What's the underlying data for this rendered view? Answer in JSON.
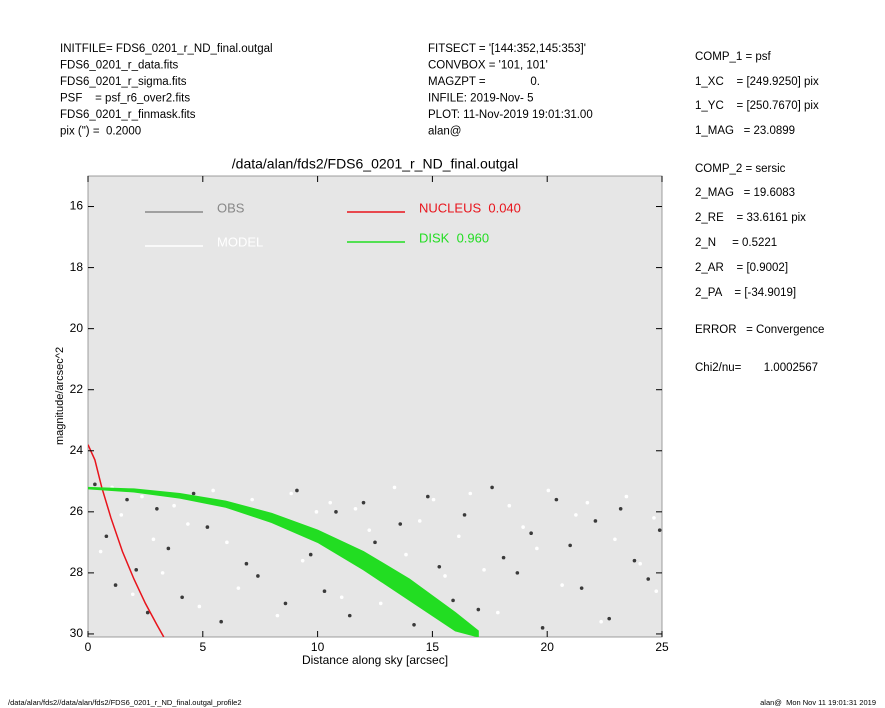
{
  "header": {
    "left": [
      "INITFILE= FDS6_0201_r_ND_final.outgal",
      "FDS6_0201_r_data.fits",
      "FDS6_0201_r_sigma.fits",
      "PSF    = psf_r6_over2.fits",
      "FDS6_0201_r_finmask.fits",
      "pix (\") =  0.2000"
    ],
    "middle": [
      "FITSECT = '[144:352,145:353]'",
      "CONVBOX = '101, 101'",
      "MAGZPT =              0.",
      "INFILE: 2019-Nov- 5",
      "PLOT: 11-Nov-2019 19:01:31.00",
      "alan@"
    ]
  },
  "side": [
    "COMP_1 = psf",
    "1_XC    = [249.9250] pix",
    "1_YC    = [250.7670] pix",
    "1_MAG   = 23.0899",
    "COMP_2 = sersic",
    "2_MAG   = 19.6083",
    "2_RE    = 33.6161 pix",
    "2_N     = 0.5221",
    "2_AR    = [0.9002]",
    "2_PA    = [-34.9019]",
    "ERROR   = Convergence",
    "Chi2/nu=       1.0002567"
  ],
  "footer": {
    "left": "/data/alan/fds2//data/alan/fds2/FDS6_0201_r_ND_final.outgal_profile2",
    "right": "alan@  Mon Nov 11 19:01:31 2019"
  },
  "chart_data": {
    "type": "scatter",
    "title": "/data/alan/fds2/FDS6_0201_r_ND_final.outgal",
    "xlabel": "Distance along sky [arcsec]",
    "ylabel": "magnitude/arcsec^2",
    "xlim": [
      0,
      25
    ],
    "xticks": [
      0,
      5,
      10,
      15,
      20,
      25
    ],
    "ylim": [
      15,
      30.1
    ],
    "yticks": [
      16,
      18,
      20,
      22,
      24,
      26,
      28,
      30
    ],
    "y_inverted": true,
    "background": "#e6e6e6",
    "series": [
      {
        "name": "OBS",
        "style": "points",
        "color": "#888888",
        "marker_color": "#3a3a3a",
        "x": [
          0.3,
          0.8,
          1.2,
          1.7,
          2.1,
          2.6,
          3.0,
          3.5,
          4.1,
          4.6,
          5.2,
          5.8,
          6.3,
          6.9,
          7.4,
          8.0,
          8.6,
          9.1,
          9.7,
          10.3,
          10.8,
          11.4,
          12.0,
          12.5,
          13.1,
          13.6,
          14.2,
          14.8,
          15.3,
          15.9,
          16.4,
          17.0,
          17.6,
          18.1,
          18.7,
          19.3,
          19.8,
          20.4,
          21.0,
          21.5,
          22.1,
          22.7,
          23.2,
          23.8,
          24.4,
          24.9
        ],
        "values": [
          25.1,
          26.8,
          28.4,
          25.6,
          27.9,
          29.3,
          25.9,
          27.2,
          28.8,
          25.4,
          26.5,
          29.6,
          25.8,
          27.7,
          28.1,
          26.2,
          29.0,
          25.3,
          27.4,
          28.6,
          26.0,
          29.4,
          25.7,
          27.0,
          28.3,
          26.4,
          29.7,
          25.5,
          27.8,
          28.9,
          26.1,
          29.2,
          25.2,
          27.5,
          28.0,
          26.7,
          29.8,
          25.6,
          27.1,
          28.5,
          26.3,
          29.5,
          25.9,
          27.6,
          28.2,
          26.6
        ]
      },
      {
        "name": "MODEL",
        "style": "points",
        "color": "#ffffff",
        "marker_color": "#ffffff",
        "x": [
          0.55,
          1.05,
          1.45,
          1.95,
          2.35,
          2.85,
          3.25,
          3.75,
          4.35,
          4.85,
          5.45,
          6.05,
          6.55,
          7.15,
          7.65,
          8.25,
          8.85,
          9.35,
          9.95,
          10.55,
          11.05,
          11.65,
          12.25,
          12.75,
          13.35,
          13.85,
          14.45,
          15.05,
          15.55,
          16.15,
          16.65,
          17.25,
          17.85,
          18.35,
          18.95,
          19.55,
          20.05,
          20.65,
          21.25,
          21.75,
          22.35,
          22.95,
          23.45,
          24.05,
          24.65,
          24.75
        ],
        "values": [
          27.3,
          25.2,
          26.1,
          28.7,
          25.5,
          26.9,
          28.0,
          25.8,
          26.4,
          29.1,
          25.3,
          27.0,
          28.5,
          25.6,
          26.2,
          29.4,
          25.4,
          27.6,
          26.0,
          25.7,
          28.8,
          25.9,
          26.6,
          29.0,
          25.2,
          27.4,
          26.3,
          25.6,
          28.1,
          26.8,
          25.4,
          27.9,
          29.3,
          25.8,
          26.5,
          27.2,
          25.3,
          28.4,
          26.1,
          25.7,
          29.6,
          26.9,
          25.5,
          27.7,
          26.2,
          28.6
        ]
      },
      {
        "name": "NUCLEUS  0.040",
        "style": "line",
        "color": "#e8141c",
        "x": [
          0,
          0.3,
          0.6,
          1,
          1.5,
          2,
          2.5,
          3,
          3.3
        ],
        "values": [
          23.8,
          24.3,
          25.2,
          26.2,
          27.3,
          28.2,
          29,
          29.7,
          30.1
        ]
      },
      {
        "name": "DISK  0.960",
        "style": "band",
        "color": "#22dd22",
        "x": [
          0,
          2,
          4,
          6,
          8,
          10,
          12,
          14,
          16,
          17
        ],
        "values": [
          25.2,
          25.25,
          25.4,
          25.65,
          26.05,
          26.6,
          27.3,
          28.2,
          29.3,
          29.9
        ],
        "lower": [
          25.25,
          25.35,
          25.55,
          25.85,
          26.35,
          27.0,
          27.9,
          28.9,
          29.9,
          30.1
        ]
      }
    ]
  }
}
